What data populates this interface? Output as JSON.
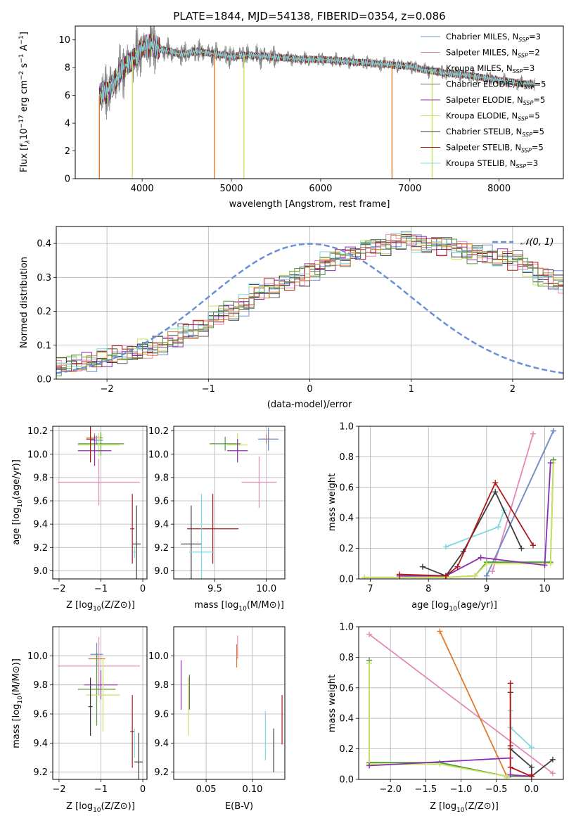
{
  "figure": {
    "title": "PLATE=1844, MJD=54138, FIBERID=0354, z=0.086"
  },
  "colors": {
    "chabrier_miles": "#6b8fd6",
    "salpeter_miles": "#e58ab8",
    "kroupa_miles": "#4a4a4a",
    "chabrier_elodie": "#666666",
    "salpeter_elodie": "#8b2fb0",
    "kroupa_elodie": "#c7e35f",
    "chabrier_stelib": "#3d3d3d",
    "salpeter_stelib": "#b21a1a",
    "kroupa_stelib": "#7fd8df",
    "orange": "#e07b2b",
    "green": "#4f9a3a",
    "data": "#808080",
    "normal": "#6a8fd6"
  },
  "chart_data": [
    {
      "id": "spectrum",
      "type": "line",
      "title": "PLATE=1844, MJD=54138, FIBERID=0354, z=0.086",
      "xlabel": "wavelength [Angstrom, rest frame]",
      "ylabel_parts": [
        "Flux [f",
        "λ",
        "10",
        "−17",
        " erg cm",
        "−2",
        " s",
        "−1",
        " A",
        "−1",
        "]"
      ],
      "xlim": [
        3250,
        8720
      ],
      "ylim": [
        0,
        11
      ],
      "xticks": [
        4000,
        5000,
        6000,
        7000,
        8000
      ],
      "yticks": [
        0,
        2,
        4,
        6,
        8,
        10
      ],
      "grid": false,
      "legend_placement": "right",
      "continuum": {
        "x": [
          3520,
          3600,
          3700,
          3800,
          3900,
          4000,
          4100,
          4200,
          4300,
          4400,
          4500,
          4600,
          4700,
          4800,
          4900,
          5000,
          5200,
          5400,
          5600,
          5800,
          6000,
          6200,
          6400,
          6600,
          6800,
          7000,
          7200,
          7400,
          7600,
          7800,
          8000,
          8200,
          8400
        ],
        "y": [
          6.0,
          6.3,
          7.0,
          8.1,
          8.6,
          9.4,
          9.7,
          9.3,
          9.2,
          9.0,
          9.0,
          9.2,
          9.1,
          9.0,
          8.9,
          8.8,
          8.9,
          8.8,
          8.7,
          8.6,
          8.6,
          8.5,
          8.4,
          8.3,
          8.2,
          8.1,
          7.8,
          7.6,
          7.5,
          7.3,
          7.1,
          6.9,
          6.8
        ]
      },
      "spikes": [
        3520,
        3890,
        4810,
        5140,
        6800,
        7250
      ],
      "series": [
        {
          "label": "Chabrier MILES, N",
          "sub": "SSP",
          "n": "=3",
          "color": "#6b8fd6"
        },
        {
          "label": "Salpeter MILES, N",
          "sub": "SSP",
          "n": "=2",
          "color": "#e58ab8"
        },
        {
          "label": "Kroupa MILES, N",
          "sub": "SSP",
          "n": "=3",
          "color": "#4a4a4a"
        },
        {
          "label": "Chabrier ELODIE, N",
          "sub": "SSP",
          "n": "=5",
          "color": "#666666"
        },
        {
          "label": "Salpeter ELODIE, N",
          "sub": "SSP",
          "n": "=5",
          "color": "#8b2fb0"
        },
        {
          "label": "Kroupa ELODIE, N",
          "sub": "SSP",
          "n": "=5",
          "color": "#c7e35f"
        },
        {
          "label": "Chabrier STELIB, N",
          "sub": "SSP",
          "n": "=5",
          "color": "#3d3d3d"
        },
        {
          "label": "Salpeter STELIB, N",
          "sub": "SSP",
          "n": "=5",
          "color": "#b21a1a"
        },
        {
          "label": "Kroupa STELIB, N",
          "sub": "SSP",
          "n": "=3",
          "color": "#7fd8df"
        }
      ]
    },
    {
      "id": "residuals",
      "type": "bar",
      "xlabel": "(data-model)/error",
      "ylabel": "Normed distribution",
      "xlim": [
        -2.5,
        2.5
      ],
      "ylim": [
        0,
        0.45
      ],
      "xticks": [
        -2,
        -1,
        0,
        1,
        2
      ],
      "yticks": [
        0.0,
        0.1,
        0.2,
        0.3,
        0.4
      ],
      "grid": true,
      "legend": {
        "label": "𝒩(0, 1)",
        "placement": "top-right"
      },
      "bin_width": 0.1,
      "base_hist": [
        0.035,
        0.04,
        0.045,
        0.05,
        0.055,
        0.06,
        0.07,
        0.075,
        0.08,
        0.09,
        0.1,
        0.11,
        0.12,
        0.14,
        0.15,
        0.17,
        0.19,
        0.2,
        0.21,
        0.23,
        0.26,
        0.27,
        0.28,
        0.29,
        0.3,
        0.32,
        0.33,
        0.35,
        0.36,
        0.37,
        0.38,
        0.39,
        0.39,
        0.4,
        0.41,
        0.41,
        0.4,
        0.4,
        0.39,
        0.39,
        0.38,
        0.37,
        0.37,
        0.36,
        0.36,
        0.35,
        0.34,
        0.32,
        0.3,
        0.29,
        0.27,
        0.26,
        0.25,
        0.23,
        0.21,
        0.2,
        0.19,
        0.17,
        0.16,
        0.15,
        0.14,
        0.13,
        0.12,
        0.1,
        0.09,
        0.08,
        0.07,
        0.065,
        0.06,
        0.055,
        0.05,
        0.045,
        0.04,
        0.035,
        0.03
      ],
      "normal_dist": {
        "mean": 0,
        "sigma": 1
      }
    },
    {
      "id": "age-vs-Z",
      "type": "scatter",
      "xlabel": "Z [log10(Z/Z⊙)]",
      "ylabel": "age  [log10(age/yr)]",
      "xlim": [
        -2.15,
        0.1
      ],
      "ylim": [
        8.93,
        10.24
      ],
      "xticks": [
        -2,
        -1,
        0
      ],
      "yticks": [
        9.0,
        9.2,
        9.4,
        9.6,
        9.8,
        10.0,
        10.2
      ],
      "grid": true,
      "points": [
        {
          "x": -1.15,
          "y": 10.14,
          "xerr": 0.2,
          "yerr": 0.04,
          "color": "#e07b2b"
        },
        {
          "x": -1.1,
          "y": 10.12,
          "xerr": 0.15,
          "yerr": 0.04,
          "color": "#6b8fd6"
        },
        {
          "x": -1.0,
          "y": 10.09,
          "xerr": 0.55,
          "yerr": 0.1,
          "color": "#4f9a3a"
        },
        {
          "x": -1.05,
          "y": 10.08,
          "xerr": 0.5,
          "yerr": 0.1,
          "color": "#c7e35f"
        },
        {
          "x": -1.15,
          "y": 10.03,
          "xerr": 0.4,
          "yerr": 0.13,
          "color": "#8b2fb0"
        },
        {
          "x": -1.25,
          "y": 10.13,
          "xerr": 0.1,
          "yerr": 0.2,
          "color": "#b21a1a"
        },
        {
          "x": -1.05,
          "y": 9.76,
          "xerr": 0.98,
          "yerr": 0.2,
          "color": "#e58ab8"
        },
        {
          "x": -0.15,
          "y": 9.23,
          "xerr": 0.1,
          "yerr": 0.33,
          "color": "#3d3d3d"
        },
        {
          "x": -0.25,
          "y": 9.36,
          "xerr": 0.05,
          "yerr": 0.3,
          "color": "#b21a1a"
        },
        {
          "x": -0.2,
          "y": 9.16,
          "xerr": 0.03,
          "yerr": 0.05,
          "color": "#7fd8df"
        }
      ]
    },
    {
      "id": "age-vs-mass",
      "type": "scatter",
      "xlabel": "mass [log10(M/M⊙)]",
      "ylabel": "",
      "xlim": [
        9.1,
        10.18
      ],
      "ylim": [
        8.93,
        10.24
      ],
      "xticks": [
        9.5,
        10.0
      ],
      "yticks": [
        9.0,
        9.2,
        9.4,
        9.6,
        9.8,
        10.0,
        10.2
      ],
      "grid": true,
      "points": [
        {
          "x": 10.0,
          "y": 10.13,
          "xerr": 0.04,
          "yerr": 0.04,
          "color": "#e07b2b"
        },
        {
          "x": 10.02,
          "y": 10.13,
          "xerr": 0.1,
          "yerr": 0.1,
          "color": "#6b8fd6"
        },
        {
          "x": 9.6,
          "y": 10.09,
          "xerr": 0.15,
          "yerr": 0.06,
          "color": "#4f9a3a"
        },
        {
          "x": 9.72,
          "y": 10.08,
          "xerr": 0.1,
          "yerr": 0.1,
          "color": "#c7e35f"
        },
        {
          "x": 9.72,
          "y": 10.03,
          "xerr": 0.1,
          "yerr": 0.1,
          "color": "#8b2fb0"
        },
        {
          "x": 9.93,
          "y": 9.76,
          "xerr": 0.17,
          "yerr": 0.22,
          "color": "#e58ab8"
        },
        {
          "x": 9.27,
          "y": 9.23,
          "xerr": 0.1,
          "yerr": 0.33,
          "color": "#3d3d3d"
        },
        {
          "x": 9.48,
          "y": 9.36,
          "xerr": 0.25,
          "yerr": 0.3,
          "color": "#b21a1a"
        },
        {
          "x": 9.37,
          "y": 9.16,
          "xerr": 0.12,
          "yerr": 0.5,
          "color": "#7fd8df"
        }
      ]
    },
    {
      "id": "mass-weight-vs-age",
      "type": "line",
      "xlabel": "age  [log10(age/yr)]",
      "ylabel": "mass weight",
      "xlim": [
        6.8,
        10.32
      ],
      "ylim": [
        0,
        1
      ],
      "xticks": [
        7,
        8,
        9,
        10
      ],
      "yticks": [
        0.0,
        0.2,
        0.4,
        0.6,
        0.8,
        1.0
      ],
      "grid": true,
      "series": [
        {
          "color": "#7fd8df",
          "x": [
            8.3,
            9.2,
            9.3
          ],
          "y": [
            0.21,
            0.34,
            0.45
          ]
        },
        {
          "color": "#e58ab8",
          "x": [
            9.1,
            9.8
          ],
          "y": [
            0.05,
            0.95
          ]
        },
        {
          "color": "#e07b2b",
          "x": [
            9.0,
            10.15
          ],
          "y": [
            0.02,
            0.97
          ]
        },
        {
          "color": "#6b8fd6",
          "x": [
            9.0,
            10.15
          ],
          "y": [
            0.02,
            0.97
          ]
        },
        {
          "color": "#4f9a3a",
          "x": [
            6.9,
            8.3,
            8.8,
            9.0,
            10.1,
            10.15
          ],
          "y": [
            0.01,
            0.01,
            0.02,
            0.11,
            0.11,
            0.78
          ]
        },
        {
          "color": "#c7e35f",
          "x": [
            6.9,
            8.3,
            8.8,
            9.0,
            10.1,
            10.15
          ],
          "y": [
            0.01,
            0.01,
            0.02,
            0.1,
            0.1,
            0.76
          ]
        },
        {
          "color": "#8b2fb0",
          "x": [
            7.5,
            8.3,
            8.9,
            10.0,
            10.1
          ],
          "y": [
            0.02,
            0.02,
            0.14,
            0.09,
            0.76
          ]
        },
        {
          "color": "#3d3d3d",
          "x": [
            7.9,
            8.3,
            8.6,
            9.15,
            9.6
          ],
          "y": [
            0.08,
            0.02,
            0.18,
            0.57,
            0.2
          ]
        },
        {
          "color": "#b21a1a",
          "x": [
            7.5,
            8.3,
            8.5,
            9.15,
            9.8
          ],
          "y": [
            0.03,
            0.02,
            0.08,
            0.63,
            0.22
          ]
        }
      ]
    },
    {
      "id": "mass-vs-Z",
      "type": "scatter",
      "xlabel": "Z [log10(Z/Z⊙)]",
      "ylabel": "mass [log10(M/M⊙)]",
      "xlim": [
        -2.15,
        0.1
      ],
      "ylim": [
        9.15,
        10.2
      ],
      "xticks": [
        -2,
        -1,
        0
      ],
      "yticks": [
        9.2,
        9.4,
        9.6,
        9.8,
        10.0
      ],
      "grid": true,
      "points": [
        {
          "x": -1.1,
          "y": 10.01,
          "xerr": 0.15,
          "yerr": 0.08,
          "color": "#6b8fd6"
        },
        {
          "x": -1.1,
          "y": 9.98,
          "xerr": 0.2,
          "yerr": 0.05,
          "color": "#e07b2b"
        },
        {
          "x": -1.05,
          "y": 9.93,
          "xerr": 0.98,
          "yerr": 0.2,
          "color": "#e58ab8"
        },
        {
          "x": -1.0,
          "y": 9.8,
          "xerr": 0.4,
          "yerr": 0.1,
          "color": "#8b2fb0"
        },
        {
          "x": -1.1,
          "y": 9.77,
          "xerr": 0.45,
          "yerr": 0.25,
          "color": "#4f9a3a"
        },
        {
          "x": -0.95,
          "y": 9.73,
          "xerr": 0.4,
          "yerr": 0.25,
          "color": "#c7e35f"
        },
        {
          "x": -1.25,
          "y": 9.65,
          "xerr": 0.05,
          "yerr": 0.2,
          "color": "#3d3d3d"
        },
        {
          "x": -0.25,
          "y": 9.48,
          "xerr": 0.05,
          "yerr": 0.25,
          "color": "#b21a1a"
        },
        {
          "x": -0.2,
          "y": 9.4,
          "xerr": 0.03,
          "yerr": 0.1,
          "color": "#7fd8df"
        },
        {
          "x": -0.1,
          "y": 9.27,
          "xerr": 0.1,
          "yerr": 0.2,
          "color": "#3d3d3d"
        }
      ]
    },
    {
      "id": "mass-vs-ebv",
      "type": "scatter",
      "xlabel": "E(B-V)",
      "ylabel": "",
      "xlim": [
        0.015,
        0.135
      ],
      "ylim": [
        9.15,
        10.2
      ],
      "xticks": [
        0.05,
        0.1
      ],
      "yticks": [
        9.2,
        9.4,
        9.6,
        9.8,
        10.0
      ],
      "grid": true,
      "points": [
        {
          "x": 0.084,
          "y": 10.06,
          "xerr": 0,
          "yerr": 0.08,
          "color": "#e58ab8"
        },
        {
          "x": 0.083,
          "y": 10.0,
          "xerr": 0,
          "yerr": 0.08,
          "color": "#e07b2b"
        },
        {
          "x": 0.023,
          "y": 9.8,
          "xerr": 0,
          "yerr": 0.17,
          "color": "#8b2fb0"
        },
        {
          "x": 0.031,
          "y": 9.65,
          "xerr": 0,
          "yerr": 0.2,
          "color": "#c7e35f"
        },
        {
          "x": 0.032,
          "y": 9.75,
          "xerr": 0,
          "yerr": 0.12,
          "color": "#666666"
        },
        {
          "x": 0.114,
          "y": 9.45,
          "xerr": 0,
          "yerr": 0.17,
          "color": "#7fd8df"
        },
        {
          "x": 0.123,
          "y": 9.35,
          "xerr": 0,
          "yerr": 0.15,
          "color": "#3d3d3d"
        },
        {
          "x": 0.132,
          "y": 9.56,
          "xerr": 0,
          "yerr": 0.17,
          "color": "#b21a1a"
        }
      ]
    },
    {
      "id": "mass-weight-vs-Z",
      "type": "line",
      "xlabel": "Z [log10(Z/Z⊙)]",
      "ylabel": "mass weight",
      "xlim": [
        -2.45,
        0.45
      ],
      "ylim": [
        0,
        1
      ],
      "xticks": [
        -2.0,
        -1.5,
        -1.0,
        -0.5,
        0.0
      ],
      "yticks": [
        0.0,
        0.2,
        0.4,
        0.6,
        0.8,
        1.0
      ],
      "grid": true,
      "series": [
        {
          "color": "#e58ab8",
          "x": [
            -2.3,
            0.3
          ],
          "y": [
            0.95,
            0.04
          ]
        },
        {
          "color": "#e07b2b",
          "x": [
            -1.3,
            -0.35
          ],
          "y": [
            0.97,
            0.02
          ]
        },
        {
          "color": "#4f9a3a",
          "x": [
            -2.3,
            -2.3,
            -1.3,
            -0.35,
            0.0
          ],
          "y": [
            0.78,
            0.11,
            0.11,
            0.02,
            0.02
          ]
        },
        {
          "color": "#c7e35f",
          "x": [
            -2.3,
            -2.3,
            -1.3,
            -0.35,
            -0.35
          ],
          "y": [
            0.76,
            0.1,
            0.1,
            0.02,
            0.01
          ]
        },
        {
          "color": "#8b2fb0",
          "x": [
            -2.3,
            -0.3,
            -0.3,
            0.0
          ],
          "y": [
            0.09,
            0.14,
            0.03,
            0.02
          ]
        },
        {
          "color": "#7fd8df",
          "x": [
            -0.3,
            -0.3,
            0.0
          ],
          "y": [
            0.45,
            0.34,
            0.21
          ]
        },
        {
          "color": "#3d3d3d",
          "x": [
            -0.3,
            -0.3,
            0.0,
            0.0,
            0.3
          ],
          "y": [
            0.57,
            0.2,
            0.08,
            0.02,
            0.13
          ]
        },
        {
          "color": "#b21a1a",
          "x": [
            -0.3,
            -0.3,
            -0.3,
            0.0,
            0.0
          ],
          "y": [
            0.63,
            0.22,
            0.08,
            0.02,
            0.03
          ]
        }
      ]
    }
  ]
}
